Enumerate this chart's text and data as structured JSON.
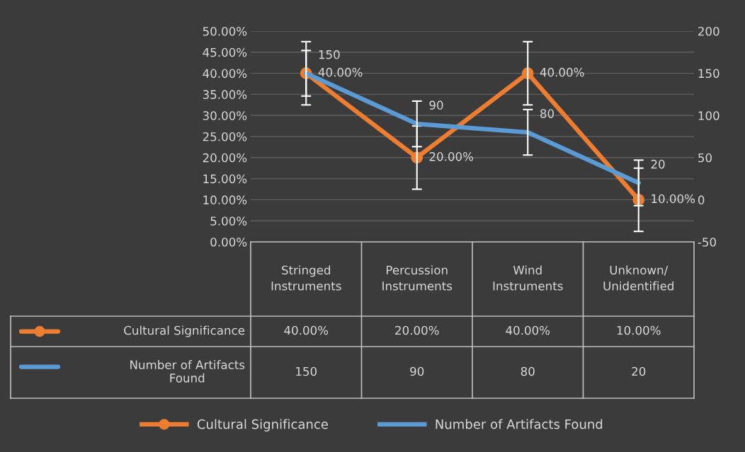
{
  "chart_data": {
    "type": "line",
    "categories": [
      "Stringed Instruments",
      "Percussion Instruments",
      "Wind Instruments",
      "Unknown/Unidentified"
    ],
    "series": [
      {
        "name": "Cultural Significance",
        "color": "#ed7d31",
        "values": [
          40,
          20,
          40,
          10
        ],
        "value_labels": [
          "40.00%",
          "20.00%",
          "40.00%",
          "10.00%"
        ],
        "errors": [
          7.5,
          7.5,
          7.5,
          7.5
        ],
        "marker": "circle"
      },
      {
        "name": "Number of Artifacts Found",
        "color": "#5b9bd5",
        "values": [
          150,
          90,
          80,
          20
        ],
        "value_labels": [
          "150",
          "90",
          "80",
          "20"
        ],
        "errors": [
          27,
          27,
          27,
          27
        ],
        "axis": "y2",
        "marker": "none"
      }
    ],
    "ylim": [
      0,
      50
    ],
    "yticks": [
      {
        "value": 0,
        "label": "0.00%"
      },
      {
        "value": 5,
        "label": "5.00%"
      },
      {
        "value": 10,
        "label": "10.00%"
      },
      {
        "value": 15,
        "label": "15.00%"
      },
      {
        "value": 20,
        "label": "20.00%"
      },
      {
        "value": 25,
        "label": "25.00%"
      },
      {
        "value": 30,
        "label": "30.00%"
      },
      {
        "value": 35,
        "label": "35.00%"
      },
      {
        "value": 40,
        "label": "40.00%"
      },
      {
        "value": 45,
        "label": "45.00%"
      },
      {
        "value": 50,
        "label": "50.00%"
      }
    ],
    "y2lim": [
      -50,
      200
    ],
    "y2ticks": [
      -50,
      0,
      50,
      100,
      150,
      200
    ],
    "grid": "y",
    "legend": "bottom",
    "line_style": "solid"
  }
}
